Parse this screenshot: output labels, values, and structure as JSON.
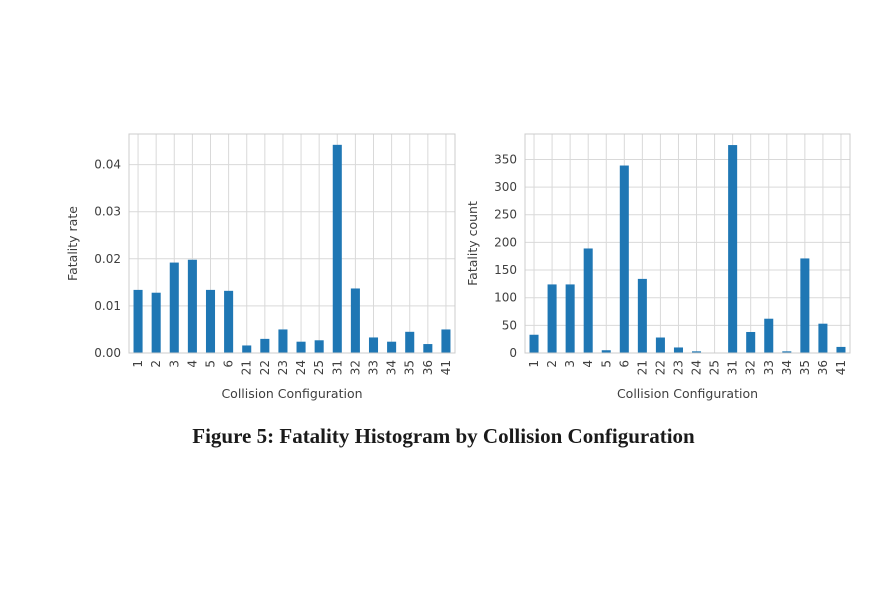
{
  "caption": "Figure 5: Fatality Histogram by Collision Configuration",
  "colors": {
    "bar": "#1f77b4",
    "grid": "#d9d9d9",
    "frame": "#cccccc",
    "text": "#3f3f3f"
  },
  "chart_data": [
    {
      "type": "bar",
      "title": "",
      "xlabel": "Collision Configuration",
      "ylabel": "Fatality rate",
      "categories": [
        "1",
        "2",
        "3",
        "4",
        "5",
        "6",
        "21",
        "22",
        "23",
        "24",
        "25",
        "31",
        "32",
        "33",
        "34",
        "35",
        "36",
        "41"
      ],
      "values": [
        0.0134,
        0.0128,
        0.0192,
        0.0198,
        0.0134,
        0.0132,
        0.0016,
        0.003,
        0.005,
        0.0024,
        0.0027,
        0.0442,
        0.0137,
        0.0033,
        0.0024,
        0.0045,
        0.0019,
        0.005
      ],
      "ylim": [
        0,
        0.0465
      ],
      "yticks": [
        "0.00",
        "0.01",
        "0.02",
        "0.03",
        "0.04"
      ],
      "ytick_values": [
        0,
        0.01,
        0.02,
        0.03,
        0.04
      ],
      "grid": true,
      "legend": "none"
    },
    {
      "type": "bar",
      "title": "",
      "xlabel": "Collision Configuration",
      "ylabel": "Fatality count",
      "categories": [
        "1",
        "2",
        "3",
        "4",
        "5",
        "6",
        "21",
        "22",
        "23",
        "24",
        "25",
        "31",
        "32",
        "33",
        "34",
        "35",
        "36",
        "41"
      ],
      "values": [
        33,
        124,
        124,
        189,
        5,
        339,
        134,
        28,
        10,
        3,
        0,
        376,
        38,
        62,
        3,
        171,
        53,
        11
      ],
      "ylim": [
        0,
        396
      ],
      "yticks": [
        "0",
        "50",
        "100",
        "150",
        "200",
        "250",
        "300",
        "350"
      ],
      "ytick_values": [
        0,
        50,
        100,
        150,
        200,
        250,
        300,
        350
      ],
      "grid": true,
      "legend": "none"
    }
  ]
}
